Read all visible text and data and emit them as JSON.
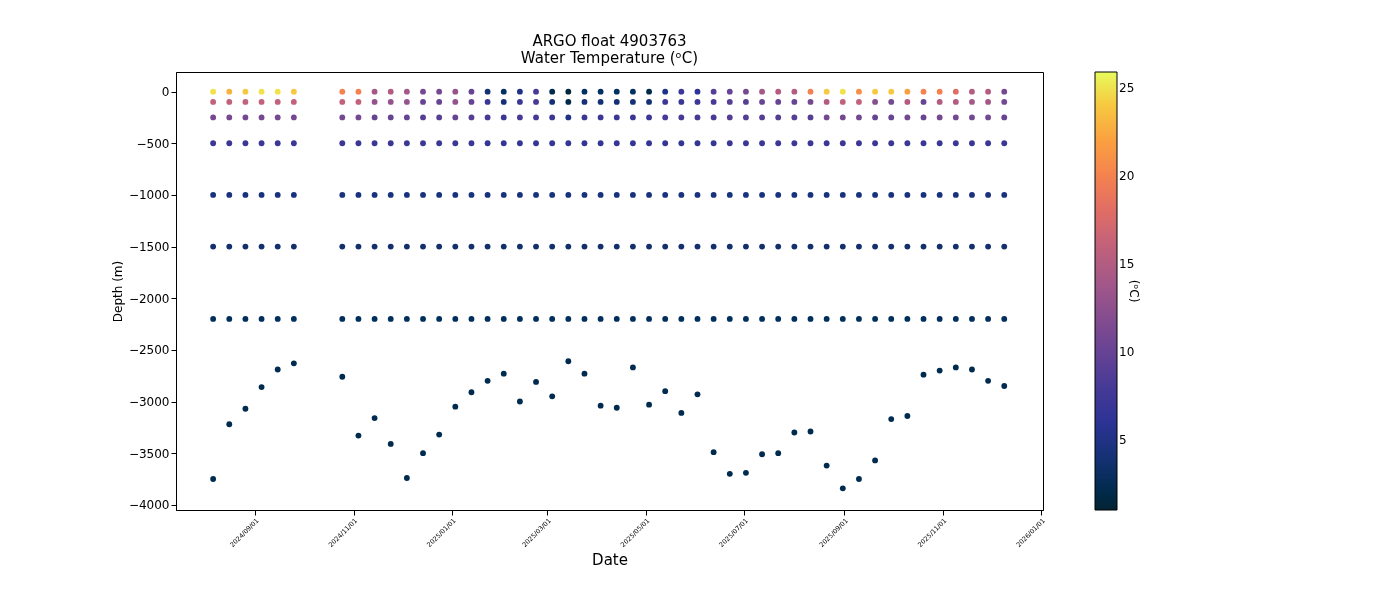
{
  "chart_data": {
    "type": "scatter",
    "title": "ARGO float 4903763",
    "subtitle": "Water Temperature (ᵒC)",
    "xlabel": "Date",
    "ylabel": "Depth (m)",
    "clabel": "(ᵒC)",
    "marker": "circle",
    "clim": [
      1,
      25.9
    ],
    "cticks": [
      5,
      10,
      15,
      20,
      25
    ],
    "xlim": [
      "2024-07-14",
      "2026-01-02"
    ],
    "ylim": [
      -4050,
      190
    ],
    "xticks": [
      {
        "value": "2024-09-01",
        "label": "2024/09/01"
      },
      {
        "value": "2024-11-01",
        "label": "2024/11/01"
      },
      {
        "value": "2025-01-01",
        "label": "2025/01/01"
      },
      {
        "value": "2025-03-01",
        "label": "2025/03/01"
      },
      {
        "value": "2025-05-01",
        "label": "2025/05/01"
      },
      {
        "value": "2025-07-01",
        "label": "2025/07/01"
      },
      {
        "value": "2025-09-01",
        "label": "2025/09/01"
      },
      {
        "value": "2025-11-01",
        "label": "2025/11/01"
      },
      {
        "value": "2026-01-01",
        "label": "2026/01/01"
      }
    ],
    "yticks": [
      0,
      {
        "value": -500,
        "label": "−500"
      },
      {
        "value": -1000,
        "label": "−1000"
      },
      {
        "value": -1500,
        "label": "−1500"
      },
      {
        "value": -2000,
        "label": "−2000"
      },
      {
        "value": -2500,
        "label": "−2500"
      },
      {
        "value": -3000,
        "label": "−3000"
      },
      {
        "value": -3500,
        "label": "−3500"
      },
      {
        "value": -4000,
        "label": "−4000"
      }
    ],
    "x": [
      "2024-08-06",
      "2024-08-06",
      "2024-08-06",
      "2024-08-06",
      "2024-08-06",
      "2024-08-06",
      "2024-08-06",
      "2024-08-06",
      "2024-08-16",
      "2024-08-16",
      "2024-08-16",
      "2024-08-16",
      "2024-08-16",
      "2024-08-16",
      "2024-08-16",
      "2024-08-16",
      "2024-08-26",
      "2024-08-26",
      "2024-08-26",
      "2024-08-26",
      "2024-08-26",
      "2024-08-26",
      "2024-08-26",
      "2024-08-26",
      "2024-09-05",
      "2024-09-05",
      "2024-09-05",
      "2024-09-05",
      "2024-09-05",
      "2024-09-05",
      "2024-09-05",
      "2024-09-05",
      "2024-09-15",
      "2024-09-15",
      "2024-09-15",
      "2024-09-15",
      "2024-09-15",
      "2024-09-15",
      "2024-09-15",
      "2024-09-15",
      "2024-09-25",
      "2024-09-25",
      "2024-09-25",
      "2024-09-25",
      "2024-09-25",
      "2024-09-25",
      "2024-09-25",
      "2024-09-25",
      "2024-10-25",
      "2024-10-25",
      "2024-10-25",
      "2024-10-25",
      "2024-10-25",
      "2024-10-25",
      "2024-10-25",
      "2024-10-25",
      "2024-11-04",
      "2024-11-04",
      "2024-11-04",
      "2024-11-04",
      "2024-11-04",
      "2024-11-04",
      "2024-11-04",
      "2024-11-04",
      "2024-11-14",
      "2024-11-14",
      "2024-11-14",
      "2024-11-14",
      "2024-11-14",
      "2024-11-14",
      "2024-11-14",
      "2024-11-14",
      "2024-11-24",
      "2024-11-24",
      "2024-11-24",
      "2024-11-24",
      "2024-11-24",
      "2024-11-24",
      "2024-11-24",
      "2024-11-24",
      "2024-12-04",
      "2024-12-04",
      "2024-12-04",
      "2024-12-04",
      "2024-12-04",
      "2024-12-04",
      "2024-12-04",
      "2024-12-04",
      "2024-12-14",
      "2024-12-14",
      "2024-12-14",
      "2024-12-14",
      "2024-12-14",
      "2024-12-14",
      "2024-12-14",
      "2024-12-14",
      "2024-12-24",
      "2024-12-24",
      "2024-12-24",
      "2024-12-24",
      "2024-12-24",
      "2024-12-24",
      "2024-12-24",
      "2024-12-24",
      "2025-01-03",
      "2025-01-03",
      "2025-01-03",
      "2025-01-03",
      "2025-01-03",
      "2025-01-03",
      "2025-01-03",
      "2025-01-03",
      "2025-01-13",
      "2025-01-13",
      "2025-01-13",
      "2025-01-13",
      "2025-01-13",
      "2025-01-13",
      "2025-01-13",
      "2025-01-13",
      "2025-01-23",
      "2025-01-23",
      "2025-01-23",
      "2025-01-23",
      "2025-01-23",
      "2025-01-23",
      "2025-01-23",
      "2025-01-23",
      "2025-02-02",
      "2025-02-02",
      "2025-02-02",
      "2025-02-02",
      "2025-02-02",
      "2025-02-02",
      "2025-02-02",
      "2025-02-02",
      "2025-02-12",
      "2025-02-12",
      "2025-02-12",
      "2025-02-12",
      "2025-02-12",
      "2025-02-12",
      "2025-02-12",
      "2025-02-12",
      "2025-02-22",
      "2025-02-22",
      "2025-02-22",
      "2025-02-22",
      "2025-02-22",
      "2025-02-22",
      "2025-02-22",
      "2025-02-22",
      "2025-03-04",
      "2025-03-04",
      "2025-03-04",
      "2025-03-04",
      "2025-03-04",
      "2025-03-04",
      "2025-03-04",
      "2025-03-04",
      "2025-03-14",
      "2025-03-14",
      "2025-03-14",
      "2025-03-14",
      "2025-03-14",
      "2025-03-14",
      "2025-03-14",
      "2025-03-14",
      "2025-03-24",
      "2025-03-24",
      "2025-03-24",
      "2025-03-24",
      "2025-03-24",
      "2025-03-24",
      "2025-03-24",
      "2025-03-24",
      "2025-04-03",
      "2025-04-03",
      "2025-04-03",
      "2025-04-03",
      "2025-04-03",
      "2025-04-03",
      "2025-04-03",
      "2025-04-03",
      "2025-04-13",
      "2025-04-13",
      "2025-04-13",
      "2025-04-13",
      "2025-04-13",
      "2025-04-13",
      "2025-04-13",
      "2025-04-13",
      "2025-04-23",
      "2025-04-23",
      "2025-04-23",
      "2025-04-23",
      "2025-04-23",
      "2025-04-23",
      "2025-04-23",
      "2025-04-23",
      "2025-05-03",
      "2025-05-03",
      "2025-05-03",
      "2025-05-03",
      "2025-05-03",
      "2025-05-03",
      "2025-05-03",
      "2025-05-03",
      "2025-05-13",
      "2025-05-13",
      "2025-05-13",
      "2025-05-13",
      "2025-05-13",
      "2025-05-13",
      "2025-05-13",
      "2025-05-13",
      "2025-05-23",
      "2025-05-23",
      "2025-05-23",
      "2025-05-23",
      "2025-05-23",
      "2025-05-23",
      "2025-05-23",
      "2025-05-23",
      "2025-06-02",
      "2025-06-02",
      "2025-06-02",
      "2025-06-02",
      "2025-06-02",
      "2025-06-02",
      "2025-06-02",
      "2025-06-02",
      "2025-06-12",
      "2025-06-12",
      "2025-06-12",
      "2025-06-12",
      "2025-06-12",
      "2025-06-12",
      "2025-06-12",
      "2025-06-12",
      "2025-06-22",
      "2025-06-22",
      "2025-06-22",
      "2025-06-22",
      "2025-06-22",
      "2025-06-22",
      "2025-06-22",
      "2025-06-22",
      "2025-07-02",
      "2025-07-02",
      "2025-07-02",
      "2025-07-02",
      "2025-07-02",
      "2025-07-02",
      "2025-07-02",
      "2025-07-02",
      "2025-07-12",
      "2025-07-12",
      "2025-07-12",
      "2025-07-12",
      "2025-07-12",
      "2025-07-12",
      "2025-07-12",
      "2025-07-12",
      "2025-07-22",
      "2025-07-22",
      "2025-07-22",
      "2025-07-22",
      "2025-07-22",
      "2025-07-22",
      "2025-07-22",
      "2025-07-22",
      "2025-08-01",
      "2025-08-01",
      "2025-08-01",
      "2025-08-01",
      "2025-08-01",
      "2025-08-01",
      "2025-08-01",
      "2025-08-01",
      "2025-08-11",
      "2025-08-11",
      "2025-08-11",
      "2025-08-11",
      "2025-08-11",
      "2025-08-11",
      "2025-08-11",
      "2025-08-11",
      "2025-08-21",
      "2025-08-21",
      "2025-08-21",
      "2025-08-21",
      "2025-08-21",
      "2025-08-21",
      "2025-08-21",
      "2025-08-21",
      "2025-08-31",
      "2025-08-31",
      "2025-08-31",
      "2025-08-31",
      "2025-08-31",
      "2025-08-31",
      "2025-08-31",
      "2025-08-31",
      "2025-09-10",
      "2025-09-10",
      "2025-09-10",
      "2025-09-10",
      "2025-09-10",
      "2025-09-10",
      "2025-09-10",
      "2025-09-10",
      "2025-09-20",
      "2025-09-20",
      "2025-09-20",
      "2025-09-20",
      "2025-09-20",
      "2025-09-20",
      "2025-09-20",
      "2025-09-20",
      "2025-09-30",
      "2025-09-30",
      "2025-09-30",
      "2025-09-30",
      "2025-09-30",
      "2025-09-30",
      "2025-09-30",
      "2025-09-30",
      "2025-10-10",
      "2025-10-10",
      "2025-10-10",
      "2025-10-10",
      "2025-10-10",
      "2025-10-10",
      "2025-10-10",
      "2025-10-10",
      "2025-10-20",
      "2025-10-20",
      "2025-10-20",
      "2025-10-20",
      "2025-10-20",
      "2025-10-20",
      "2025-10-20",
      "2025-10-20",
      "2025-10-30",
      "2025-10-30",
      "2025-10-30",
      "2025-10-30",
      "2025-10-30",
      "2025-10-30",
      "2025-10-30",
      "2025-10-30",
      "2025-11-09",
      "2025-11-09",
      "2025-11-09",
      "2025-11-09",
      "2025-11-09",
      "2025-11-09",
      "2025-11-09",
      "2025-11-09",
      "2025-11-19",
      "2025-11-19",
      "2025-11-19",
      "2025-11-19",
      "2025-11-19",
      "2025-11-19",
      "2025-11-19",
      "2025-11-19",
      "2025-11-29",
      "2025-11-29",
      "2025-11-29",
      "2025-11-29",
      "2025-11-29",
      "2025-11-29",
      "2025-11-29",
      "2025-11-29",
      "2025-12-09",
      "2025-12-09",
      "2025-12-09",
      "2025-12-09",
      "2025-12-09",
      "2025-12-09",
      "2025-12-09",
      "2025-12-09"
    ],
    "values": [
      0,
      -100,
      -250,
      -500,
      -1000,
      -1500,
      -2200,
      -3750,
      0,
      -100,
      -250,
      -500,
      -1000,
      -1500,
      -2200,
      -3220,
      0,
      -100,
      -250,
      -500,
      -1000,
      -1500,
      -2200,
      -3070,
      0,
      -100,
      -250,
      -500,
      -1000,
      -1500,
      -2200,
      -2860,
      0,
      -100,
      -250,
      -500,
      -1000,
      -1500,
      -2200,
      -2690,
      0,
      -100,
      -250,
      -500,
      -1000,
      -1500,
      -2200,
      -2630,
      0,
      -100,
      -250,
      -500,
      -1000,
      -1500,
      -2200,
      -2760,
      0,
      -100,
      -250,
      -500,
      -1000,
      -1500,
      -2200,
      -3330,
      0,
      -100,
      -250,
      -500,
      -1000,
      -1500,
      -2200,
      -3160,
      0,
      -100,
      -250,
      -500,
      -1000,
      -1500,
      -2200,
      -3410,
      0,
      -100,
      -250,
      -500,
      -1000,
      -1500,
      -2200,
      -3740,
      0,
      -100,
      -250,
      -500,
      -1000,
      -1500,
      -2200,
      -3500,
      0,
      -100,
      -250,
      -500,
      -1000,
      -1500,
      -2200,
      -3320,
      0,
      -100,
      -250,
      -500,
      -1000,
      -1500,
      -2200,
      -3050,
      0,
      -100,
      -250,
      -500,
      -1000,
      -1500,
      -2200,
      -2910,
      0,
      -100,
      -250,
      -500,
      -1000,
      -1500,
      -2200,
      -2800,
      0,
      -100,
      -250,
      -500,
      -1000,
      -1500,
      -2200,
      -2730,
      0,
      -100,
      -250,
      -500,
      -1000,
      -1500,
      -2200,
      -3000,
      0,
      -100,
      -250,
      -500,
      -1000,
      -1500,
      -2200,
      -2810,
      0,
      -100,
      -250,
      -500,
      -1000,
      -1500,
      -2200,
      -2950,
      0,
      -100,
      -250,
      -500,
      -1000,
      -1500,
      -2200,
      -2610,
      0,
      -100,
      -250,
      -500,
      -1000,
      -1500,
      -2200,
      -2730,
      0,
      -100,
      -250,
      -500,
      -1000,
      -1500,
      -2200,
      -3040,
      0,
      -100,
      -250,
      -500,
      -1000,
      -1500,
      -2200,
      -3060,
      0,
      -100,
      -250,
      -500,
      -1000,
      -1500,
      -2200,
      -2670,
      0,
      -100,
      -250,
      -500,
      -1000,
      -1500,
      -2200,
      -3030,
      0,
      -100,
      -250,
      -500,
      -1000,
      -1500,
      -2200,
      -2900,
      0,
      -100,
      -250,
      -500,
      -1000,
      -1500,
      -2200,
      -3110,
      0,
      -100,
      -250,
      -500,
      -1000,
      -1500,
      -2200,
      -2930,
      0,
      -100,
      -250,
      -500,
      -1000,
      -1500,
      -2200,
      -3490,
      0,
      -100,
      -250,
      -500,
      -1000,
      -1500,
      -2200,
      -3700,
      0,
      -100,
      -250,
      -500,
      -1000,
      -1500,
      -2200,
      -3690,
      0,
      -100,
      -250,
      -500,
      -1000,
      -1500,
      -2200,
      -3510,
      0,
      -100,
      -250,
      -500,
      -1000,
      -1500,
      -2200,
      -3500,
      0,
      -100,
      -250,
      -500,
      -1000,
      -1500,
      -2200,
      -3300,
      0,
      -100,
      -250,
      -500,
      -1000,
      -1500,
      -2200,
      -3290,
      0,
      -100,
      -250,
      -500,
      -1000,
      -1500,
      -2200,
      -3620,
      0,
      -100,
      -250,
      -500,
      -1000,
      -1500,
      -2200,
      -3840,
      0,
      -100,
      -250,
      -500,
      -1000,
      -1500,
      -2200,
      -3750,
      0,
      -100,
      -250,
      -500,
      -1000,
      -1500,
      -2200,
      -3570,
      0,
      -100,
      -250,
      -500,
      -1000,
      -1500,
      -2200,
      -3170,
      0,
      -100,
      -250,
      -500,
      -1000,
      -1500,
      -2200,
      -3140,
      0,
      -100,
      -250,
      -500,
      -1000,
      -1500,
      -2200,
      -2740,
      0,
      -100,
      -250,
      -500,
      -1000,
      -1500,
      -2200,
      -2700,
      0,
      -100,
      -250,
      -500,
      -1000,
      -1500,
      -2200,
      -2670,
      0,
      -100,
      -250,
      -500,
      -1000,
      -1500,
      -2200,
      -2690,
      0,
      -100,
      -250,
      -500,
      -1000,
      -1500,
      -2200,
      -2800,
      0,
      -100,
      -250,
      -500,
      -1000,
      -1500,
      -2200,
      -2850
    ],
    "cvalues": [
      25,
      16,
      11,
      7,
      4.5,
      3.5,
      2.8,
      2.2,
      23,
      16,
      11,
      7,
      4.5,
      3.5,
      2.8,
      2.2,
      24,
      16,
      11,
      7,
      4.5,
      3.5,
      2.8,
      2.2,
      25,
      16,
      11,
      7,
      4.5,
      3.5,
      2.8,
      2.2,
      25,
      16,
      11,
      7,
      4.5,
      3.5,
      2.8,
      2.2,
      24,
      16,
      11,
      7,
      4.5,
      3.5,
      2.8,
      2.2,
      20,
      16,
      11,
      7,
      4.5,
      3.5,
      2.8,
      2.2,
      20,
      16,
      11,
      7,
      4.5,
      3.5,
      2.8,
      2.2,
      14,
      13,
      10,
      7,
      4.5,
      3.5,
      2.8,
      2.2,
      15,
      13,
      10,
      7,
      4.5,
      3.5,
      2.8,
      2.2,
      14,
      13,
      10,
      7,
      4.5,
      3.5,
      2.8,
      2.2,
      11,
      10,
      9,
      7,
      4.5,
      3.5,
      2.8,
      2.2,
      11,
      10,
      9,
      7,
      4.5,
      3.5,
      2.8,
      2.2,
      13,
      13,
      10,
      7,
      4.5,
      3.5,
      2.8,
      2.2,
      10,
      10,
      9,
      7,
      4.5,
      3.5,
      2.8,
      2.2,
      4,
      7,
      8,
      6.5,
      4.5,
      3.5,
      2.8,
      2.2,
      3,
      4,
      7,
      6.5,
      4.5,
      3.5,
      2.8,
      2.2,
      5,
      7,
      8,
      6.5,
      4.5,
      3.5,
      2.8,
      2.2,
      8,
      8,
      8,
      6.5,
      4.5,
      3.5,
      2.8,
      2.2,
      2,
      4,
      7,
      6.5,
      4.5,
      3.5,
      2.8,
      2.2,
      1.5,
      2,
      5,
      6.5,
      4.5,
      3.5,
      2.8,
      2.2,
      3,
      4,
      7,
      6.5,
      4.5,
      3.5,
      2.8,
      2.2,
      3,
      4,
      7,
      6.5,
      4.5,
      3.5,
      2.8,
      2.2,
      3,
      4,
      7,
      6.5,
      4.5,
      3.5,
      2.8,
      2.2,
      3,
      4,
      7,
      6.5,
      4.5,
      3.5,
      2.8,
      2.2,
      2,
      4,
      7,
      6.5,
      4.5,
      3.5,
      2.8,
      2.2,
      5,
      7,
      8,
      6.5,
      4.5,
      3.5,
      2.8,
      2.2,
      7,
      7,
      8,
      6.5,
      4.5,
      3.5,
      2.8,
      2.2,
      6,
      7,
      8,
      6.5,
      4.5,
      3.5,
      2.8,
      2.2,
      9,
      8,
      8,
      6.5,
      4.5,
      3.5,
      2.8,
      2.2,
      10,
      9,
      9,
      7,
      4.5,
      3.5,
      2.8,
      2.2,
      11,
      9,
      9,
      7,
      4.5,
      3.5,
      2.8,
      2.2,
      14,
      10,
      9,
      7,
      4.5,
      3.5,
      2.8,
      2.2,
      15,
      10,
      9,
      7,
      4.5,
      3.5,
      2.8,
      2.2,
      15,
      10,
      9,
      7,
      4.5,
      3.5,
      2.8,
      2.2,
      20,
      11,
      9,
      7,
      4.5,
      3.5,
      2.8,
      2.2,
      24,
      15,
      11,
      7,
      4.5,
      3.5,
      2.8,
      2.2,
      25,
      16,
      11,
      7,
      4.5,
      3.5,
      2.8,
      2.2,
      21,
      16,
      11,
      7,
      4.5,
      3.5,
      2.8,
      2.2,
      24,
      12,
      10,
      7,
      4.5,
      3.5,
      2.8,
      2.2,
      24,
      11,
      10,
      7,
      4.5,
      3.5,
      2.8,
      2.2,
      22,
      15,
      11,
      7,
      4.5,
      3.5,
      2.8,
      2.2,
      20,
      10,
      10,
      7,
      4.5,
      3.5,
      2.8,
      2.2,
      20,
      15,
      11,
      7,
      4.5,
      3.5,
      2.8,
      2.2,
      18,
      15,
      11,
      7,
      4.5,
      3.5,
      2.8,
      2.2,
      15,
      14,
      11,
      7,
      4.5,
      3.5,
      2.8,
      2.2,
      15,
      14,
      11,
      7,
      4.5,
      3.5,
      2.8,
      2.2,
      11,
      11,
      10,
      7,
      4.5,
      3.5,
      2.8,
      2.2
    ]
  }
}
